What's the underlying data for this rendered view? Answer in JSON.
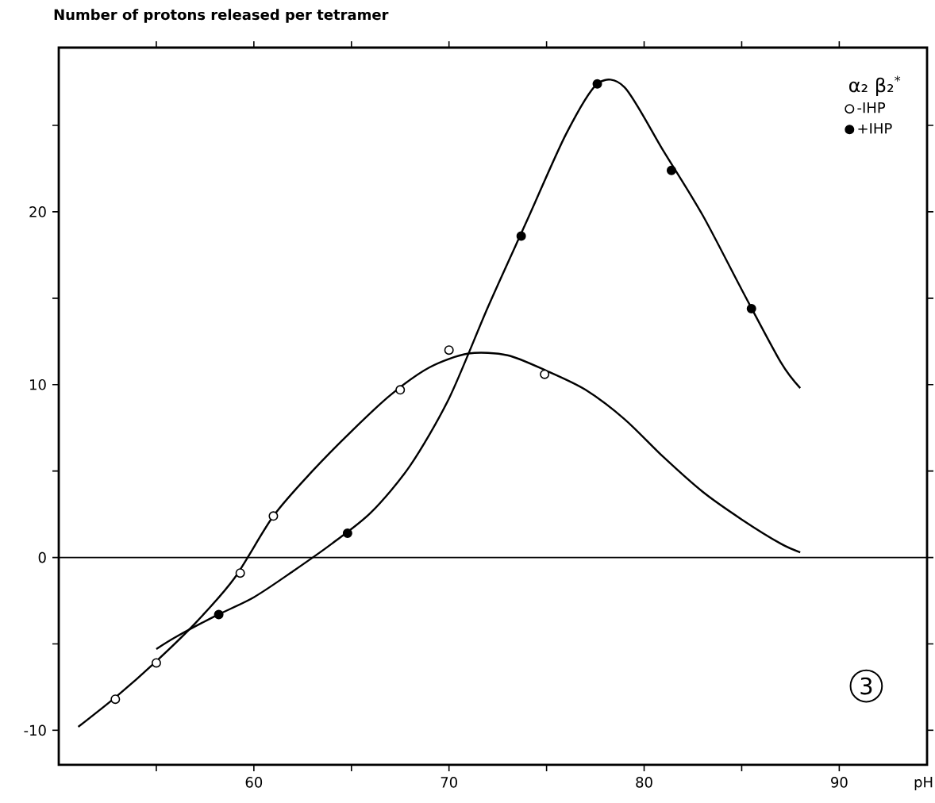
{
  "chart_data": {
    "type": "scatter",
    "ylabel": "Number of protons released per tetramer",
    "xlabel": "pH",
    "legend_title": "α₂ β₂$^{*}$",
    "xlim": [
      50,
      94.5
    ],
    "ylim": [
      -12,
      29.5
    ],
    "xticks": [
      {
        "value": 55,
        "label": null
      },
      60,
      {
        "value": 65,
        "label": null
      },
      70,
      {
        "value": 75,
        "label": null
      },
      80,
      {
        "value": 85,
        "label": null
      },
      90
    ],
    "yticks": [
      -10,
      {
        "value": -5,
        "label": null
      },
      0,
      {
        "value": 5,
        "label": null
      },
      10,
      {
        "value": 15,
        "label": null
      },
      20,
      {
        "value": 25,
        "label": null
      }
    ],
    "ref_lines": [
      {
        "axis": "y",
        "value": 0,
        "color": "#000000"
      }
    ],
    "legend": "top right",
    "annotations": [
      "3"
    ],
    "series": [
      {
        "type": "line",
        "color": "#000000",
        "marker": "none",
        "x": [
          51,
          53,
          55,
          57,
          59,
          61,
          63,
          65,
          67,
          69,
          71,
          73,
          75,
          77,
          79,
          81,
          83,
          85,
          87,
          88
        ],
        "values": [
          -9.8,
          -8,
          -6,
          -3.8,
          -1.2,
          2.4,
          5,
          7.3,
          9.4,
          11,
          11.8,
          11.7,
          10.8,
          9.7,
          8,
          5.8,
          3.8,
          2.2,
          0.8,
          0.3
        ]
      },
      {
        "type": "line",
        "color": "#000000",
        "marker": "none",
        "x": [
          55,
          56,
          58,
          60,
          62,
          64,
          66,
          68,
          70,
          72,
          74,
          76,
          77.6,
          79,
          81,
          83,
          85,
          87,
          88
        ],
        "values": [
          -5.3,
          -4.6,
          -3.4,
          -2.3,
          -0.8,
          0.8,
          2.6,
          5.3,
          9.2,
          14.5,
          19.5,
          24.5,
          27.4,
          27.2,
          23.5,
          19.8,
          15.5,
          11.3,
          9.8
        ]
      },
      {
        "name": "-IHP",
        "color": "#000000",
        "marker": "circle",
        "x": [
          52.9,
          55.0,
          59.3,
          61.0,
          67.5,
          70.0,
          74.9
        ],
        "values": [
          -8.2,
          -6.1,
          -0.9,
          2.4,
          9.7,
          12.0,
          10.6
        ]
      },
      {
        "name": "+IHP",
        "color": "#000000",
        "marker": "circle",
        "x": [
          58.2,
          64.8,
          73.7,
          77.6,
          81.4,
          85.5
        ],
        "values": [
          -3.3,
          1.4,
          18.6,
          27.4,
          22.4,
          14.4
        ]
      }
    ]
  }
}
